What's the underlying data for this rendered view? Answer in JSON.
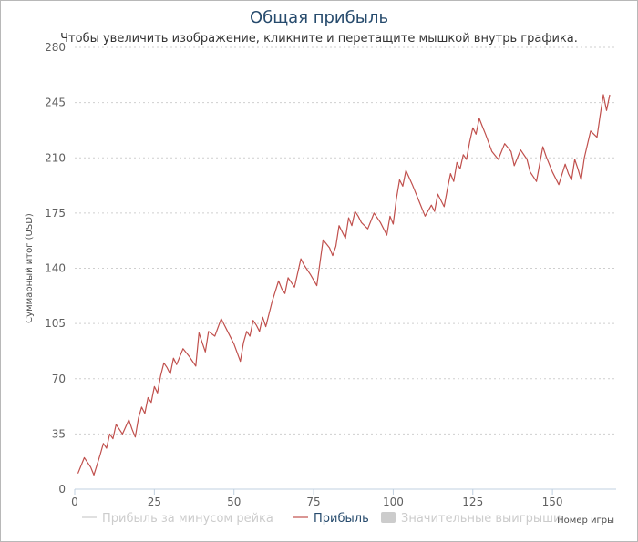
{
  "chart_data": {
    "type": "line",
    "title": "Общая прибыль",
    "subtitle": "Чтобы увеличить изображение, кликните и перетащите мышкой внутрь графика.",
    "xlabel": "Номер игры",
    "ylabel": "Суммарный итог (USD)",
    "xlim": [
      0,
      170
    ],
    "ylim": [
      0,
      280
    ],
    "xticks": [
      0,
      25,
      50,
      75,
      100,
      125,
      150
    ],
    "yticks": [
      0,
      35,
      70,
      105,
      140,
      175,
      210,
      245,
      280
    ],
    "grid": true,
    "legend": {
      "position": "bottom",
      "items": [
        {
          "label": "Прибыль за минусом рейка",
          "color": "#cccccc",
          "visible": false
        },
        {
          "label": "Прибыль",
          "color": "#c0504d",
          "visible": true
        },
        {
          "label": "Значительные выигрыши",
          "color": "#cccccc",
          "visible": false
        }
      ]
    },
    "series": [
      {
        "name": "Прибыль",
        "color": "#c0504d",
        "x": [
          1,
          3,
          5,
          6,
          8,
          9,
          10,
          11,
          12,
          13,
          14,
          15,
          17,
          18,
          19,
          20,
          21,
          22,
          23,
          24,
          25,
          26,
          27,
          28,
          29,
          30,
          31,
          32,
          34,
          36,
          38,
          39,
          40,
          41,
          42,
          44,
          46,
          48,
          50,
          52,
          53,
          54,
          55,
          56,
          57,
          58,
          59,
          60,
          62,
          64,
          65,
          66,
          67,
          68,
          69,
          71,
          72,
          74,
          76,
          78,
          80,
          81,
          82,
          83,
          84,
          85,
          86,
          87,
          88,
          89,
          90,
          92,
          94,
          96,
          98,
          99,
          100,
          101,
          102,
          103,
          104,
          106,
          108,
          110,
          112,
          113,
          114,
          115,
          116,
          117,
          118,
          119,
          120,
          121,
          122,
          123,
          124,
          125,
          126,
          127,
          128,
          129,
          131,
          133,
          135,
          137,
          138,
          140,
          142,
          143,
          145,
          147,
          148,
          150,
          152,
          154,
          155,
          156,
          157,
          158,
          159,
          160,
          162,
          164,
          165,
          166,
          167,
          168
        ],
        "values": [
          10,
          20,
          14,
          9,
          22,
          29,
          26,
          35,
          32,
          41,
          38,
          35,
          44,
          38,
          33,
          45,
          52,
          48,
          58,
          55,
          65,
          61,
          72,
          80,
          77,
          73,
          83,
          79,
          89,
          84,
          78,
          99,
          93,
          87,
          100,
          97,
          108,
          100,
          92,
          81,
          93,
          100,
          97,
          107,
          104,
          100,
          109,
          103,
          119,
          132,
          127,
          124,
          134,
          131,
          128,
          146,
          142,
          136,
          129,
          158,
          153,
          148,
          154,
          167,
          163,
          159,
          172,
          167,
          176,
          173,
          169,
          165,
          175,
          169,
          161,
          173,
          168,
          184,
          196,
          192,
          202,
          193,
          183,
          173,
          180,
          176,
          187,
          183,
          179,
          190,
          200,
          195,
          207,
          203,
          212,
          209,
          220,
          229,
          225,
          235,
          230,
          225,
          214,
          209,
          219,
          214,
          205,
          215,
          209,
          201,
          195,
          217,
          211,
          201,
          193,
          206,
          200,
          196,
          209,
          203,
          196,
          210,
          227,
          223,
          237,
          250,
          240,
          250
        ]
      }
    ]
  }
}
